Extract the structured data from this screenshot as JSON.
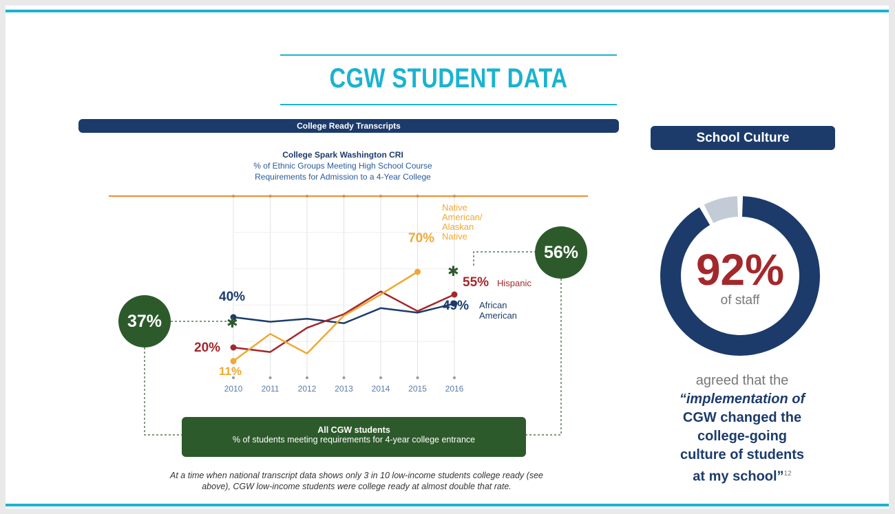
{
  "header": {
    "title": "CGW STUDENT DATA"
  },
  "left_panel": {
    "banner": "College Ready Transcripts",
    "chart_title": "College Spark Washington CRI",
    "chart_subtitle_line1": "% of Ethnic Groups Meeting High School Course",
    "chart_subtitle_line2": "Requirements for Admission to a 4-Year College",
    "circle_2010": "37%",
    "circle_2016": "56%",
    "box_title": "All CGW students",
    "box_subtitle": "% of students meeting requirements for 4-year college entrance",
    "footnote_line1": "At a time when national transcript data shows only 3 in 10 low-income students college ready (see",
    "footnote_line2": "above), CGW low-income students were college ready at almost double that rate."
  },
  "right_panel": {
    "banner": "School Culture",
    "big_pct": "92%",
    "of_staff": "of staff",
    "quote_lead": "agreed that the",
    "quote_line1": "“implementation of",
    "quote_line2": "CGW changed the",
    "quote_line3": "college-going",
    "quote_line4": "culture of students",
    "quote_line5": "at my school”",
    "footnote_ref": "12",
    "donut_fraction": 0.92,
    "colors": {
      "navy": "#1c3b6b",
      "gray": "#c3ccd6"
    }
  },
  "chart_data": {
    "type": "line",
    "title": "College Spark Washington CRI",
    "subtitle": "% of Ethnic Groups Meeting High School Course Requirements for Admission to a 4-Year College",
    "x": [
      "2010",
      "2011",
      "2012",
      "2013",
      "2014",
      "2015",
      "2016"
    ],
    "ylim": [
      0,
      100
    ],
    "series": [
      {
        "name": "African American",
        "color": "#1c3b6b",
        "values": [
          40,
          37,
          39,
          36,
          46,
          43,
          49
        ],
        "start_label": "40%",
        "end_label": "49%"
      },
      {
        "name": "Hispanic",
        "color": "#a3282b",
        "values": [
          20,
          17,
          33,
          42,
          57,
          44,
          55
        ],
        "start_label": "20%",
        "end_label": "55%"
      },
      {
        "name": "Native American/ Alaskan Native",
        "color": "#f0a832",
        "values": [
          11,
          29,
          16,
          41,
          55,
          70,
          null
        ],
        "start_label": "11%",
        "end_label": "70%"
      }
    ],
    "series_label_lines": {
      "African American": [
        "African",
        "American"
      ],
      "Hispanic": [
        "Hispanic"
      ],
      "Native American/ Alaskan Native": [
        "Native",
        "American/",
        "Alaskan",
        "Native"
      ]
    },
    "overall": {
      "name": "All CGW students",
      "values": {
        "2010": 37,
        "2016": 56
      }
    },
    "reference_line_color": "#f08a2c",
    "grid": true
  }
}
